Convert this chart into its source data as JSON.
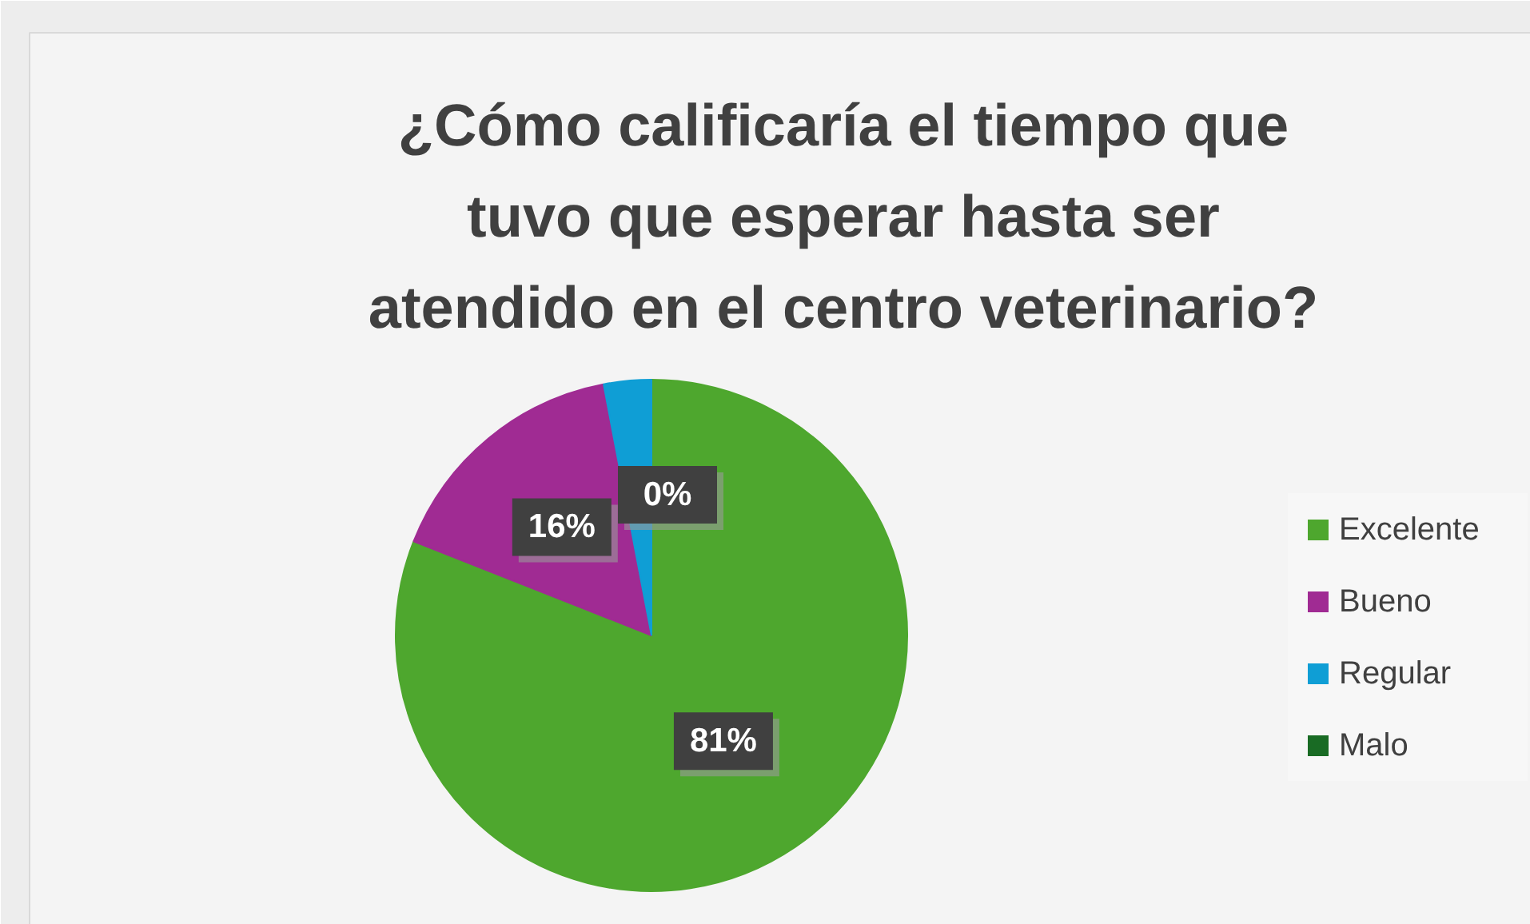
{
  "chart_data": {
    "type": "pie",
    "title": "¿Cómo calificaría el tiempo que\ntuvo que esperar hasta ser\natendido en el centro veterinario?",
    "categories": [
      "Excelente",
      "Bueno",
      "Regular",
      "Malo"
    ],
    "values": [
      81,
      16,
      3,
      0
    ],
    "value_labels": [
      "81%",
      "16%",
      null,
      "0%"
    ],
    "colors": [
      "#4ea72e",
      "#a02b93",
      "#0f9ed5",
      "#196b24"
    ],
    "legend": "right"
  }
}
